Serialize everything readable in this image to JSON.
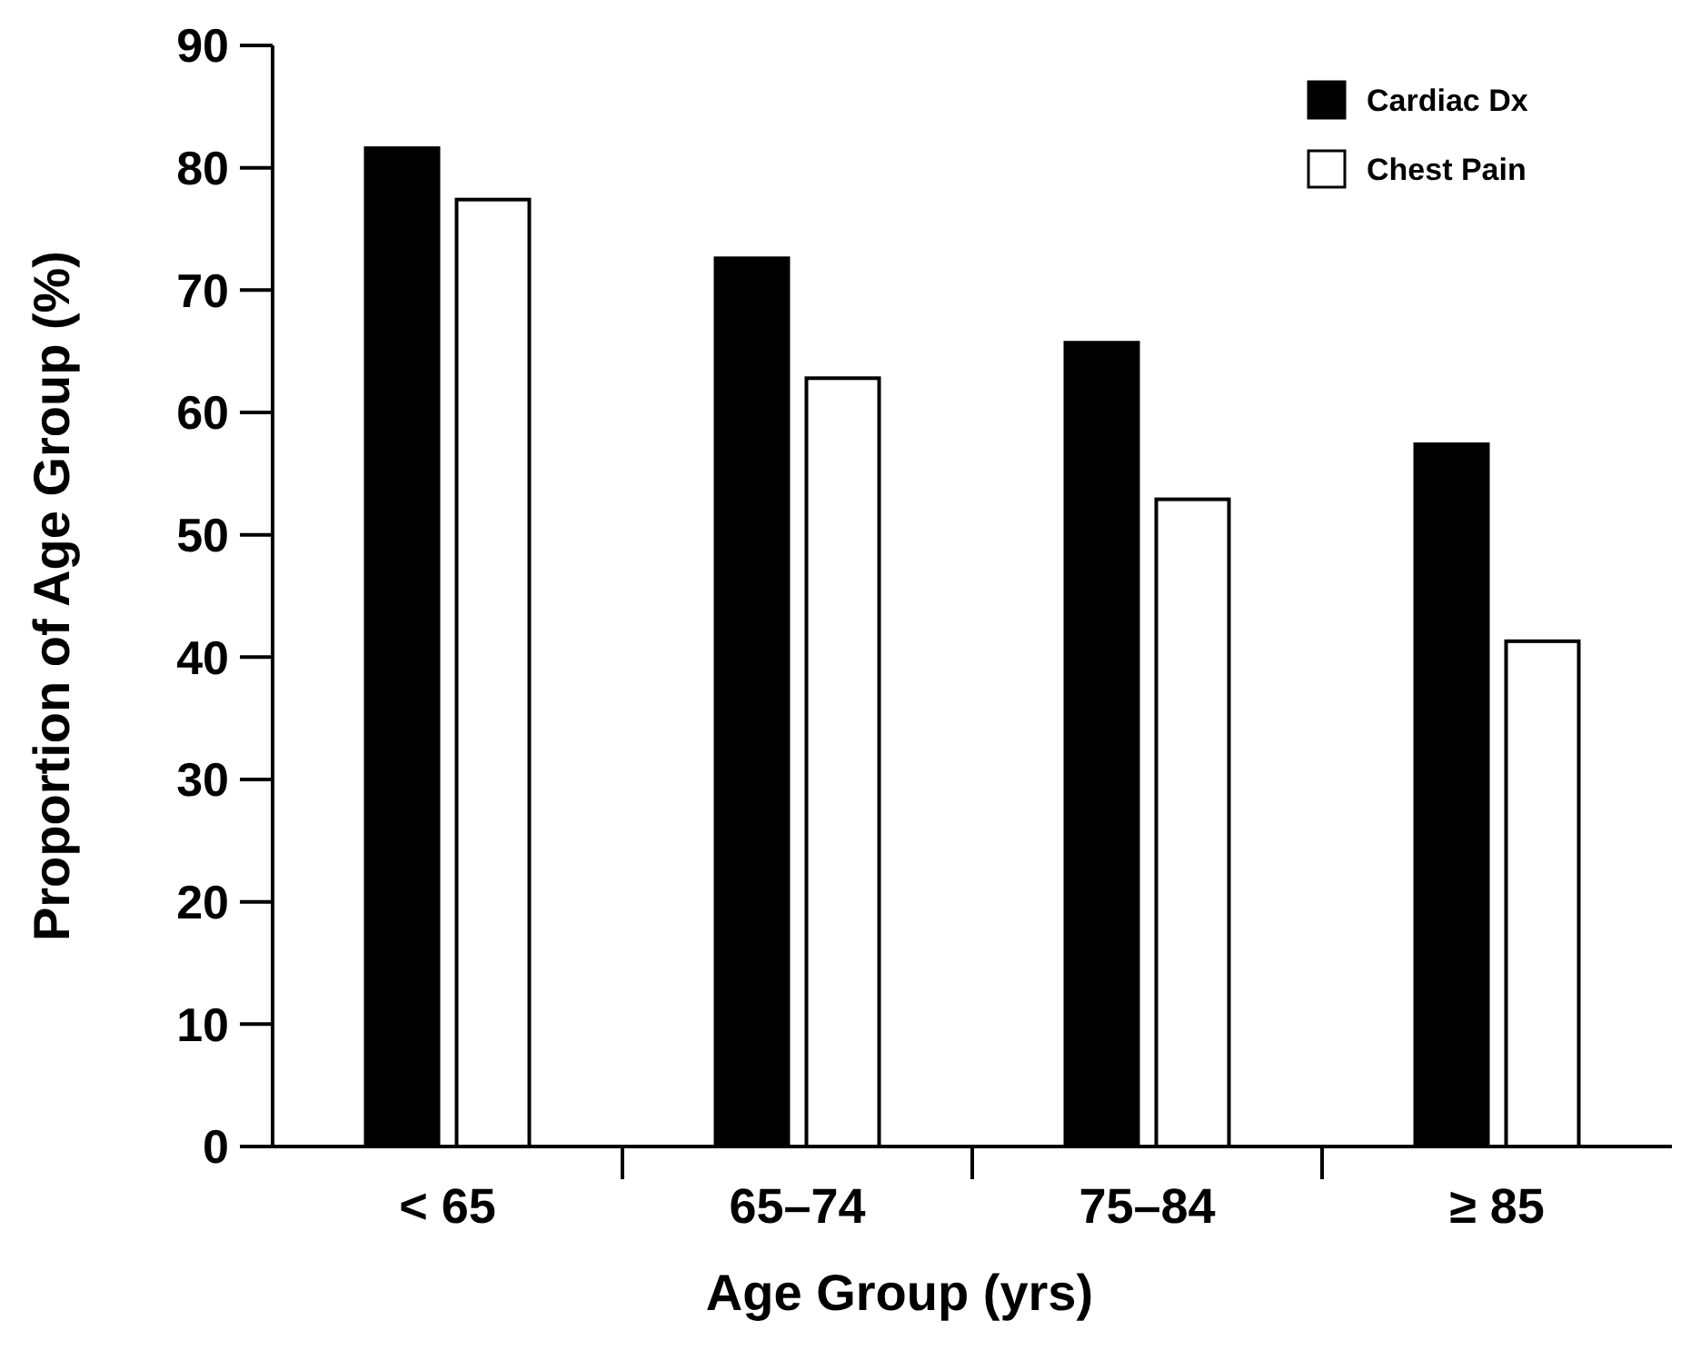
{
  "chart_data": {
    "type": "bar",
    "xlabel": "Age Group (yrs)",
    "ylabel": "Proportion of Age Group (%)",
    "categories": [
      "< 65",
      "65–74",
      "75–84",
      "≥ 85"
    ],
    "series": [
      {
        "name": "Cardiac Dx",
        "color": "#000000",
        "values": [
          81.6,
          72.6,
          65.7,
          57.4
        ]
      },
      {
        "name": "Chest Pain",
        "color": "#ffffff",
        "values": [
          77.4,
          62.8,
          52.9,
          41.3
        ]
      }
    ],
    "ylim": [
      0,
      90
    ],
    "yticks": [
      0,
      10,
      20,
      30,
      40,
      50,
      60,
      70,
      80,
      90
    ],
    "grid": false,
    "legend": "top right"
  }
}
